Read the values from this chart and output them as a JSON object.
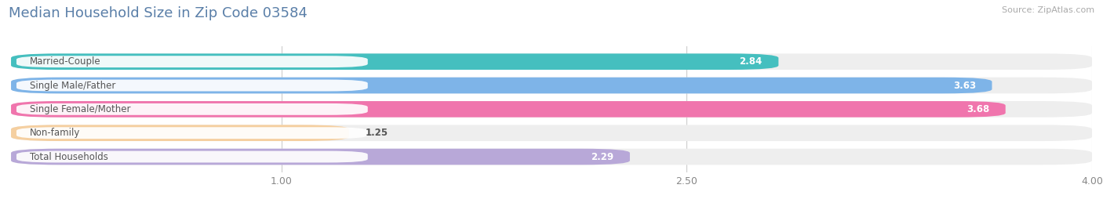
{
  "title": "Median Household Size in Zip Code 03584",
  "source": "Source: ZipAtlas.com",
  "categories": [
    "Married-Couple",
    "Single Male/Father",
    "Single Female/Mother",
    "Non-family",
    "Total Households"
  ],
  "values": [
    2.84,
    3.63,
    3.68,
    1.25,
    2.29
  ],
  "bar_colors": [
    "#45BFBF",
    "#7EB4E8",
    "#F075AD",
    "#F5CFA0",
    "#B8A8D8"
  ],
  "xlim": [
    0,
    4.0
  ],
  "xticks": [
    1.0,
    2.5,
    4.0
  ],
  "xtick_labels": [
    "1.00",
    "2.50",
    "4.00"
  ],
  "title_fontsize": 13,
  "label_fontsize": 8.5,
  "value_fontsize": 8.5,
  "background_color": "#ffffff",
  "bar_bg_color": "#eeeeee",
  "bar_height": 0.68,
  "value_inside_threshold": 1.8
}
